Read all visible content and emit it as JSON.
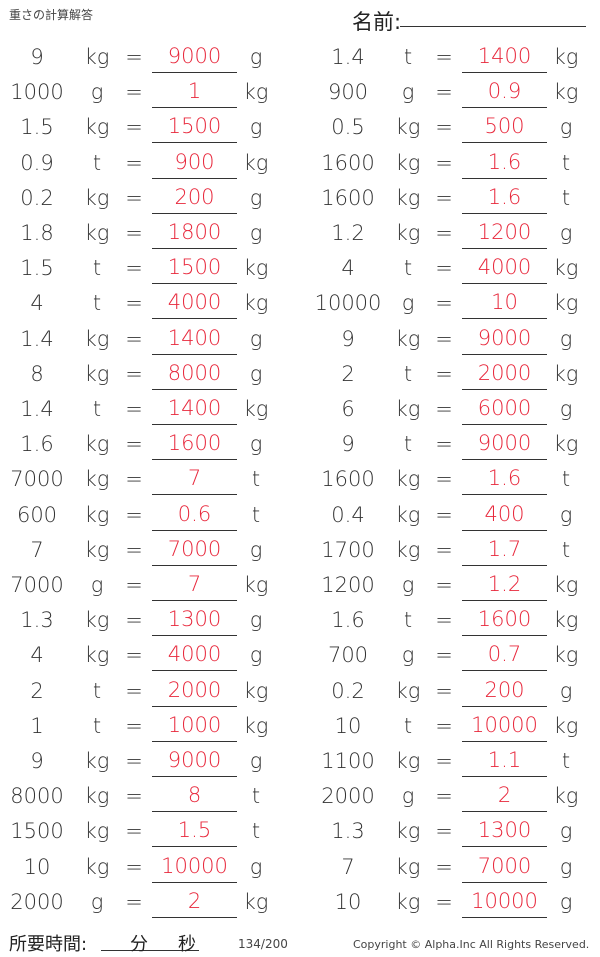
{
  "header": {
    "title": "重さの計算解答",
    "name_label": "名前:"
  },
  "equals": "=",
  "left": [
    [
      "9",
      "kg",
      "9000",
      "g"
    ],
    [
      "1000",
      "g",
      "1",
      "kg"
    ],
    [
      "1.5",
      "kg",
      "1500",
      "g"
    ],
    [
      "0.9",
      "t",
      "900",
      "kg"
    ],
    [
      "0.2",
      "kg",
      "200",
      "g"
    ],
    [
      "1.8",
      "kg",
      "1800",
      "g"
    ],
    [
      "1.5",
      "t",
      "1500",
      "kg"
    ],
    [
      "4",
      "t",
      "4000",
      "kg"
    ],
    [
      "1.4",
      "kg",
      "1400",
      "g"
    ],
    [
      "8",
      "kg",
      "8000",
      "g"
    ],
    [
      "1.4",
      "t",
      "1400",
      "kg"
    ],
    [
      "1.6",
      "kg",
      "1600",
      "g"
    ],
    [
      "7000",
      "kg",
      "7",
      "t"
    ],
    [
      "600",
      "kg",
      "0.6",
      "t"
    ],
    [
      "7",
      "kg",
      "7000",
      "g"
    ],
    [
      "7000",
      "g",
      "7",
      "kg"
    ],
    [
      "1.3",
      "kg",
      "1300",
      "g"
    ],
    [
      "4",
      "kg",
      "4000",
      "g"
    ],
    [
      "2",
      "t",
      "2000",
      "kg"
    ],
    [
      "1",
      "t",
      "1000",
      "kg"
    ],
    [
      "9",
      "kg",
      "9000",
      "g"
    ],
    [
      "8000",
      "kg",
      "8",
      "t"
    ],
    [
      "1500",
      "kg",
      "1.5",
      "t"
    ],
    [
      "10",
      "kg",
      "10000",
      "g"
    ],
    [
      "2000",
      "g",
      "2",
      "kg"
    ]
  ],
  "right": [
    [
      "1.4",
      "t",
      "1400",
      "kg"
    ],
    [
      "900",
      "g",
      "0.9",
      "kg"
    ],
    [
      "0.5",
      "kg",
      "500",
      "g"
    ],
    [
      "1600",
      "kg",
      "1.6",
      "t"
    ],
    [
      "1600",
      "kg",
      "1.6",
      "t"
    ],
    [
      "1.2",
      "kg",
      "1200",
      "g"
    ],
    [
      "4",
      "t",
      "4000",
      "kg"
    ],
    [
      "10000",
      "g",
      "10",
      "kg"
    ],
    [
      "9",
      "kg",
      "9000",
      "g"
    ],
    [
      "2",
      "t",
      "2000",
      "kg"
    ],
    [
      "6",
      "kg",
      "6000",
      "g"
    ],
    [
      "9",
      "t",
      "9000",
      "kg"
    ],
    [
      "1600",
      "kg",
      "1.6",
      "t"
    ],
    [
      "0.4",
      "kg",
      "400",
      "g"
    ],
    [
      "1700",
      "kg",
      "1.7",
      "t"
    ],
    [
      "1200",
      "g",
      "1.2",
      "kg"
    ],
    [
      "1.6",
      "t",
      "1600",
      "kg"
    ],
    [
      "700",
      "g",
      "0.7",
      "kg"
    ],
    [
      "0.2",
      "kg",
      "200",
      "g"
    ],
    [
      "10",
      "t",
      "10000",
      "kg"
    ],
    [
      "1100",
      "kg",
      "1.1",
      "t"
    ],
    [
      "2000",
      "g",
      "2",
      "kg"
    ],
    [
      "1.3",
      "kg",
      "1300",
      "g"
    ],
    [
      "7",
      "kg",
      "7000",
      "g"
    ],
    [
      "10",
      "kg",
      "10000",
      "g"
    ]
  ],
  "footer": {
    "time_label": "所要時間:",
    "minutes": "分",
    "seconds": "秒",
    "page": "134/200",
    "copyright": "Copyright © Alpha.Inc All Rights Reserved."
  },
  "colors": {
    "answer": "#e8283c",
    "text": "#333333"
  }
}
